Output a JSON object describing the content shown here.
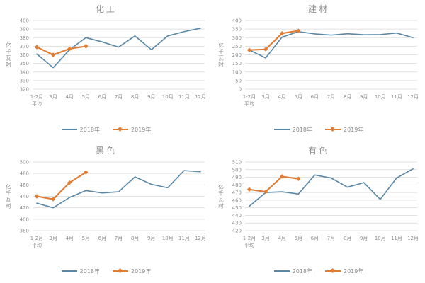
{
  "colors": {
    "series_2018": "#5a87a5",
    "series_2019": "#e07d35",
    "grid": "#e1e1e1",
    "text": "#8c8c8c",
    "background": "#ffffff"
  },
  "legend": {
    "items": [
      "2018年",
      "2019年"
    ],
    "position": "bottom"
  },
  "y_axis_unit": "亿千瓦时",
  "chart_data": [
    {
      "type": "line",
      "title": "化工",
      "ylabel": "亿千瓦时",
      "categories": [
        "1-2月\n平均",
        "3月",
        "4月",
        "5月",
        "6月",
        "7月",
        "8月",
        "9月",
        "10月",
        "11月",
        "12月"
      ],
      "ylim": [
        320,
        400
      ],
      "ytick_step": 10,
      "grid": true,
      "legend_position": "bottom",
      "series": [
        {
          "name": "2018年",
          "values": [
            361,
            345,
            366,
            380,
            375,
            369,
            382,
            366,
            382,
            387,
            391
          ]
        },
        {
          "name": "2019年",
          "values": [
            369,
            360,
            367,
            370
          ]
        }
      ]
    },
    {
      "type": "line",
      "title": "建材",
      "ylabel": "亿千瓦时",
      "categories": [
        "1-2月\n平均",
        "3月",
        "4月",
        "5月",
        "6月",
        "7月",
        "8月",
        "9月",
        "10月",
        "11月",
        "12月"
      ],
      "ylim": [
        0,
        400
      ],
      "ytick_step": 50,
      "grid": true,
      "legend_position": "bottom",
      "series": [
        {
          "name": "2018年",
          "values": [
            228,
            182,
            303,
            335,
            322,
            315,
            323,
            317,
            318,
            327,
            300
          ]
        },
        {
          "name": "2019年",
          "values": [
            228,
            232,
            325,
            340
          ]
        }
      ]
    },
    {
      "type": "line",
      "title": "黑色",
      "ylabel": "亿千瓦时",
      "categories": [
        "1-2月\n平均",
        "3月",
        "4月",
        "5月",
        "6月",
        "7月",
        "8月",
        "9月",
        "10月",
        "11月",
        "12月"
      ],
      "ylim": [
        380,
        500
      ],
      "ytick_step": 20,
      "grid": true,
      "legend_position": "bottom",
      "series": [
        {
          "name": "2018年",
          "values": [
            428,
            420,
            438,
            450,
            446,
            448,
            474,
            461,
            455,
            485,
            483
          ]
        },
        {
          "name": "2019年",
          "values": [
            440,
            435,
            464,
            482
          ]
        }
      ]
    },
    {
      "type": "line",
      "title": "有色",
      "ylabel": "亿千瓦时",
      "categories": [
        "1-2月\n平均",
        "3月",
        "4月",
        "5月",
        "6月",
        "7月",
        "8月",
        "9月",
        "10月",
        "11月",
        "12月"
      ],
      "ylim": [
        420,
        510
      ],
      "ytick_step": 10,
      "grid": true,
      "legend_position": "bottom",
      "series": [
        {
          "name": "2018年",
          "values": [
            452,
            470,
            471,
            468,
            493,
            489,
            477,
            483,
            461,
            489,
            501
          ]
        },
        {
          "name": "2019年",
          "values": [
            474,
            471,
            491,
            488
          ]
        }
      ]
    }
  ]
}
